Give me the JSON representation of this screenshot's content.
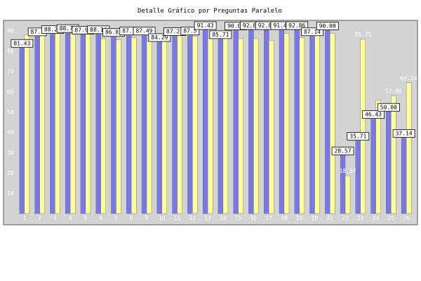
{
  "chart_data": {
    "type": "bar",
    "title": "Detalle Gráfico por Preguntas Paralelo",
    "xlabel": "",
    "ylabel": "",
    "ylim": [
      0,
      95
    ],
    "yticks": [
      10,
      20,
      30,
      40,
      50,
      60,
      70,
      80,
      90
    ],
    "grid": false,
    "categories": [
      "1",
      "2",
      "3",
      "4",
      "5",
      "6",
      "7",
      "8",
      "9",
      "10",
      "11",
      "12",
      "13",
      "14",
      "15",
      "16",
      "17",
      "18",
      "19",
      "20",
      "21",
      "22",
      "23",
      "24",
      "25",
      "26"
    ],
    "series": [
      {
        "values": [
          81.43,
          87.1,
          88.24,
          88.73,
          87.95,
          88.14,
          86.81,
          87.5,
          87.49,
          84.29,
          87.22,
          87.5,
          91.43,
          85.71,
          90.0,
          92.86,
          92.86,
          91.43,
          92.86,
          87.14,
          90.0,
          28.57,
          35.71,
          46.43,
          50.0,
          37.14
        ],
        "labels": [
          "81.43",
          "87.1",
          "88.24",
          "88.73",
          "87.95",
          "88.14",
          "86.81",
          "87.5",
          "87.49",
          "84.29",
          "87.22",
          "87.5",
          "91.43",
          "85.71",
          "90.00",
          "92.86",
          "92.86",
          "91.43",
          "92.86",
          "87.14",
          "90.00",
          "28.57",
          "35.71",
          "46.43",
          "50.00",
          "37.14"
        ]
      },
      {
        "values": [
          88.0,
          88.7,
          89.0,
          88.5,
          90.0,
          86.0,
          85.5,
          86.5,
          84.8,
          87.0,
          88.0,
          87.1,
          86.0,
          88.0,
          86.0,
          86.0,
          85.2,
          88.5,
          86.5,
          88.0,
          88.6,
          18.57,
          85.71,
          55.71,
          57.86,
          64.34
        ],
        "labels": [
          "",
          "",
          "",
          "",
          "",
          "",
          "",
          "",
          "",
          "",
          "",
          "",
          "",
          "",
          "",
          "",
          "",
          "",
          "",
          "",
          "",
          "18.57",
          "85.71",
          "",
          "57.86",
          "64.34"
        ]
      }
    ],
    "colors": {
      "series1": "#7878e8",
      "series2": "#ffff99",
      "plot_bg": "#d3d3d3",
      "outer_bg": "#ffffff",
      "tick_text": "#ffffff"
    }
  }
}
